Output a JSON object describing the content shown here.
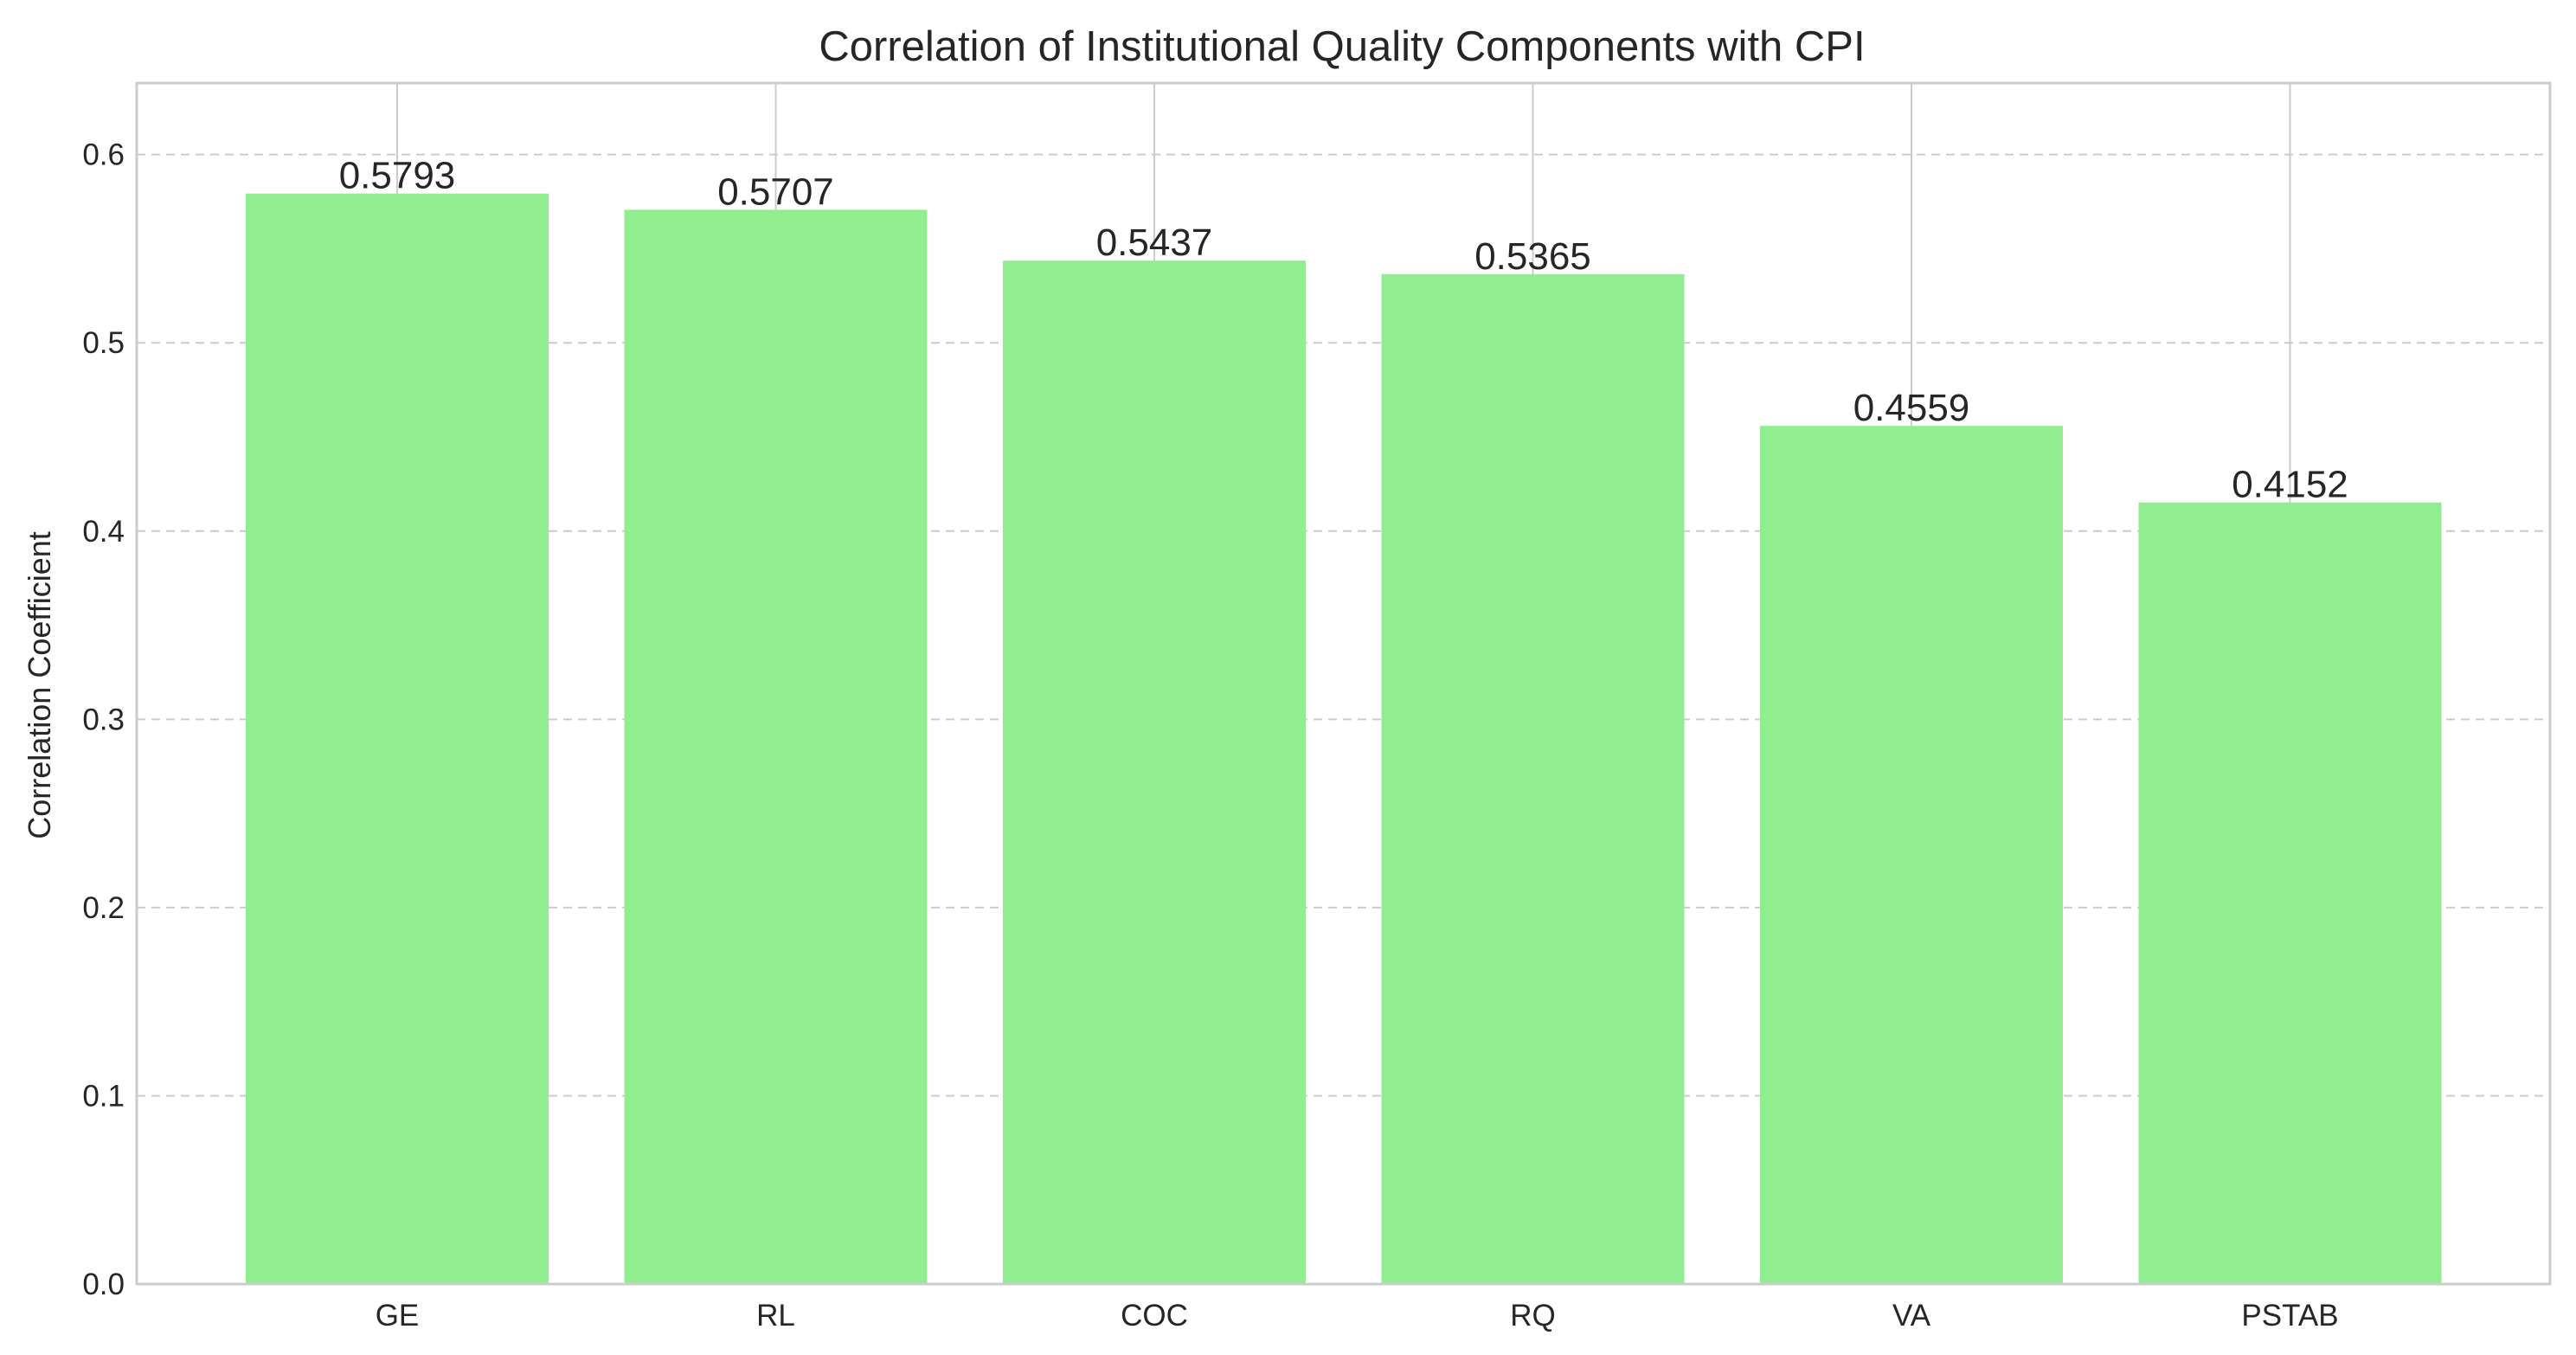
{
  "chart_data": {
    "type": "bar",
    "title": "Correlation of Institutional Quality Components with CPI",
    "xlabel": "",
    "ylabel": "Correlation Coefficient",
    "categories": [
      "GE",
      "RL",
      "COC",
      "RQ",
      "VA",
      "PSTAB"
    ],
    "values": [
      0.5793,
      0.5707,
      0.5437,
      0.5365,
      0.4559,
      0.4152
    ],
    "data_labels": [
      "0.5793",
      "0.5707",
      "0.5437",
      "0.5365",
      "0.4559",
      "0.4152"
    ],
    "ylim": [
      0,
      0.638
    ],
    "yticks": [
      0.0,
      0.1,
      0.2,
      0.3,
      0.4,
      0.5,
      0.6
    ],
    "ytick_labels": [
      "0.0",
      "0.1",
      "0.2",
      "0.3",
      "0.4",
      "0.5",
      "0.6"
    ],
    "grid": {
      "y": "dashed",
      "x": "solid"
    },
    "bar_color": "#90ee90",
    "grid_color": "#cccccc",
    "text_color": "#262626"
  }
}
